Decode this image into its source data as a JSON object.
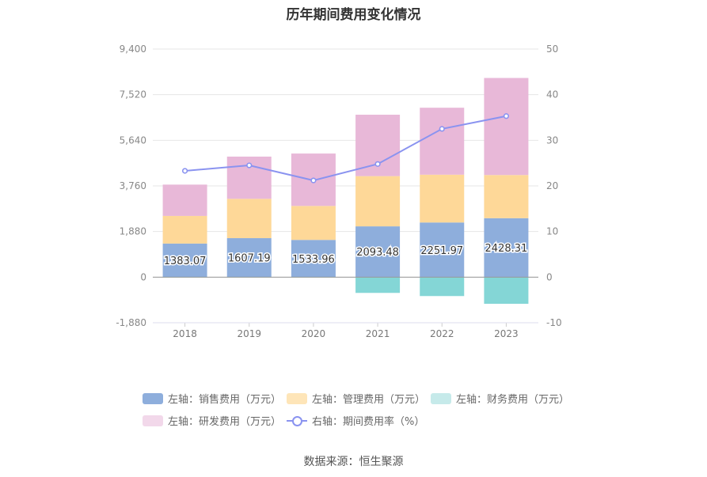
{
  "chart_data": {
    "type": "bar",
    "title": "历年期间费用变化情况",
    "categories": [
      "2018",
      "2019",
      "2020",
      "2021",
      "2022",
      "2023"
    ],
    "stacked": true,
    "series": [
      {
        "name": "左轴：销售费用（万元）",
        "axis": "left",
        "color": "#8eaedc",
        "values": [
          1383.07,
          1607.19,
          1533.96,
          2093.48,
          2251.97,
          2428.31
        ],
        "labels": [
          "1383.07",
          "1607.19",
          "1533.96",
          "2093.48",
          "2251.97",
          "2428.31"
        ]
      },
      {
        "name": "左轴：管理费用（万元）",
        "axis": "left",
        "color": "#fed898",
        "values": [
          1140,
          1620,
          1400,
          2070,
          1970,
          1780
        ]
      },
      {
        "name": "左轴：财务费用（万元）",
        "axis": "left",
        "color": "#84d6d6",
        "values": [
          -20,
          -20,
          -20,
          -650,
          -780,
          -1100
        ]
      },
      {
        "name": "左轴：研发费用（万元）",
        "axis": "left",
        "color": "#e8b8d8",
        "values": [
          1290,
          1740,
          2160,
          2530,
          2760,
          4000
        ]
      },
      {
        "name": "右轴：期间费用率（%）",
        "axis": "right",
        "type": "line",
        "color": "#8a93f0",
        "values": [
          23.3,
          24.5,
          21.2,
          24.8,
          32.5,
          35.3
        ]
      }
    ],
    "left_axis": {
      "ticks": [
        "9,400",
        "7,520",
        "5,640",
        "3,760",
        "1,880",
        "0",
        "-1,880"
      ],
      "ylim": [
        -1880,
        9400
      ]
    },
    "right_axis": {
      "ticks": [
        "50",
        "40",
        "30",
        "20",
        "10",
        "0",
        "-10"
      ],
      "ylim": [
        -10,
        50
      ]
    },
    "grid": true,
    "legend_position": "bottom"
  },
  "source_text": "数据来源：恒生聚源"
}
